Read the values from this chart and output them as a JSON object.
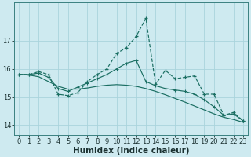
{
  "xlabel": "Humidex (Indice chaleur)",
  "background_color": "#ceeaf0",
  "grid_color": "#aad4dc",
  "line_color": "#1a6e62",
  "x_values": [
    0,
    1,
    2,
    3,
    4,
    5,
    6,
    7,
    8,
    9,
    10,
    11,
    12,
    13,
    14,
    15,
    16,
    17,
    18,
    19,
    20,
    21,
    22,
    23
  ],
  "y_main": [
    15.8,
    15.8,
    15.9,
    15.8,
    15.1,
    15.05,
    15.15,
    15.55,
    15.8,
    16.0,
    16.55,
    16.75,
    17.15,
    17.8,
    15.45,
    15.95,
    15.65,
    15.7,
    15.75,
    15.1,
    15.1,
    14.35,
    14.45,
    14.15
  ],
  "y_smooth1": [
    15.8,
    15.8,
    15.85,
    15.7,
    15.3,
    15.2,
    15.35,
    15.5,
    15.65,
    15.8,
    16.0,
    16.2,
    16.3,
    15.55,
    15.4,
    15.3,
    15.25,
    15.2,
    15.1,
    14.9,
    14.65,
    14.35,
    14.4,
    14.15
  ],
  "y_smooth2": [
    15.8,
    15.78,
    15.72,
    15.55,
    15.38,
    15.28,
    15.28,
    15.32,
    15.38,
    15.42,
    15.44,
    15.42,
    15.38,
    15.3,
    15.2,
    15.08,
    14.95,
    14.82,
    14.68,
    14.54,
    14.4,
    14.28,
    14.2,
    14.1
  ],
  "ylim": [
    13.65,
    18.35
  ],
  "xlim": [
    -0.5,
    23.5
  ],
  "yticks": [
    14,
    15,
    16,
    17
  ],
  "xticks": [
    0,
    1,
    2,
    3,
    4,
    5,
    6,
    7,
    8,
    9,
    10,
    11,
    12,
    13,
    14,
    15,
    16,
    17,
    18,
    19,
    20,
    21,
    22,
    23
  ],
  "tick_fontsize": 6,
  "xlabel_fontsize": 7.5
}
